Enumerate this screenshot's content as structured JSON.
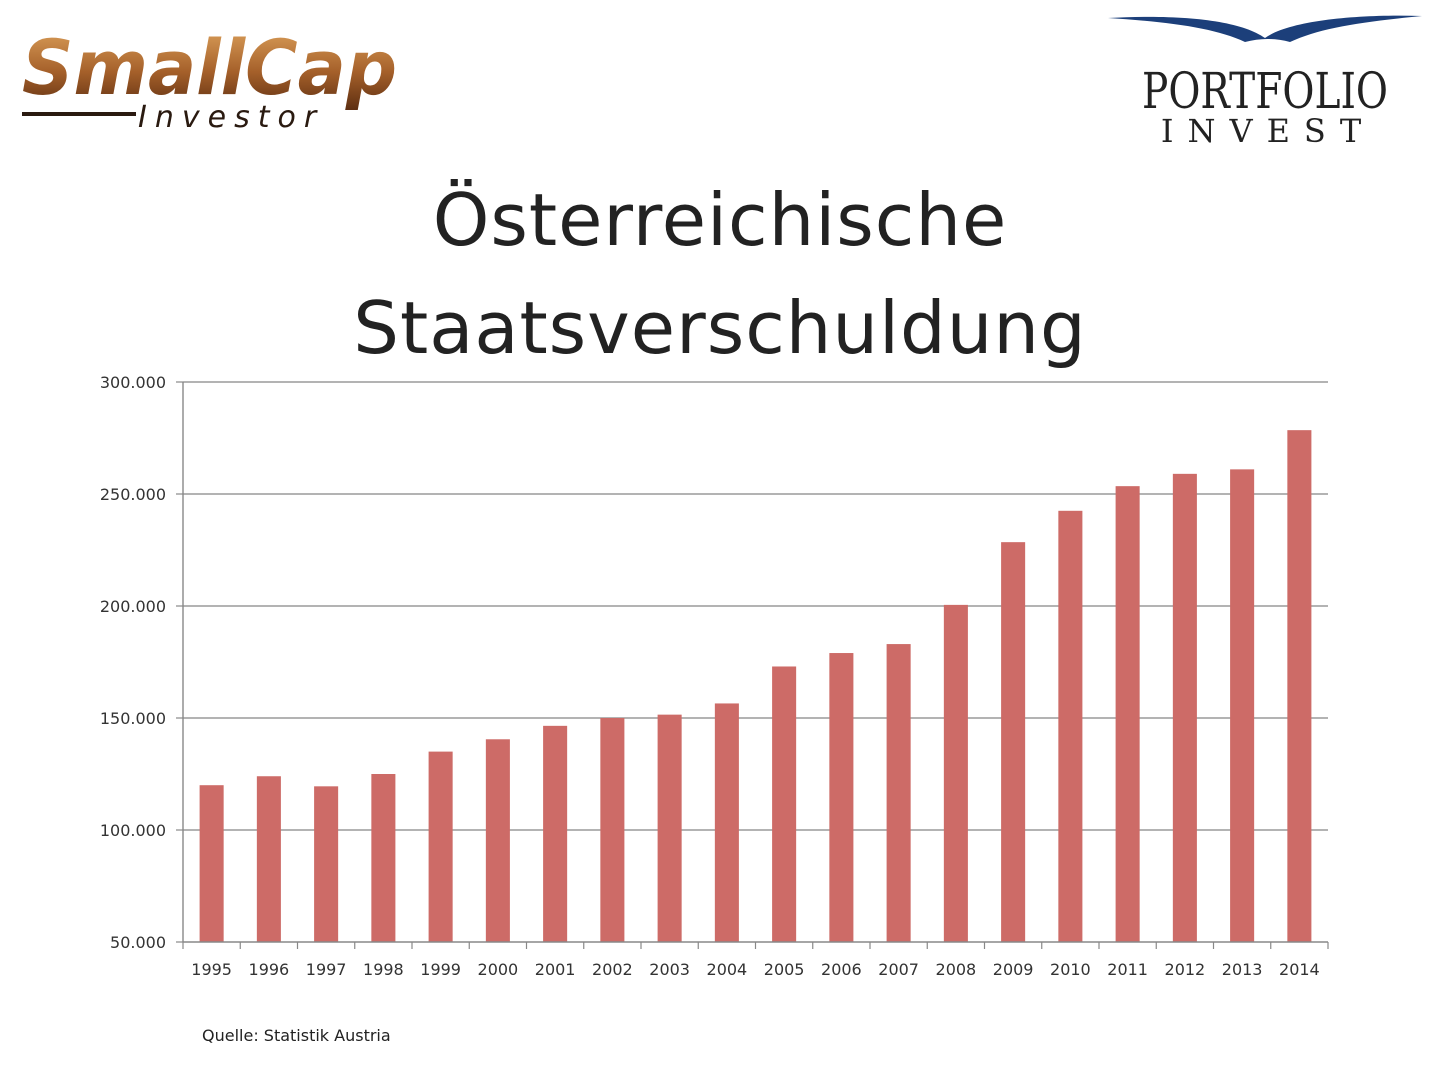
{
  "logos": {
    "smallcap": {
      "line1": "SmallCap",
      "line2": "Investor"
    },
    "portfolio": {
      "line1": "PORTFOLIO",
      "line2": "INVEST"
    }
  },
  "colors": {
    "bar": "#cd6b67",
    "grid": "#9a9a9a",
    "axis": "#888888",
    "smallcap_brown": "#8a4a1e",
    "portfolio_blue": "#1c3f7a"
  },
  "chart_data": {
    "type": "bar",
    "title": "Österreichische Staatsverschuldung",
    "title_lines": [
      "Österreichische",
      "Staatsverschuldung"
    ],
    "xlabel": "",
    "ylabel": "",
    "ylim": [
      50000,
      300000
    ],
    "yticks": [
      50000,
      100000,
      150000,
      200000,
      250000,
      300000
    ],
    "ytick_labels": [
      "50.000",
      "100.000",
      "150.000",
      "200.000",
      "250.000",
      "300.000"
    ],
    "grid": true,
    "legend": "none",
    "categories": [
      "1995",
      "1996",
      "1997",
      "1998",
      "1999",
      "2000",
      "2001",
      "2002",
      "2003",
      "2004",
      "2005",
      "2006",
      "2007",
      "2008",
      "2009",
      "2010",
      "2011",
      "2012",
      "2013",
      "2014"
    ],
    "values": [
      120000,
      124000,
      119500,
      125000,
      135000,
      140500,
      146500,
      150000,
      151500,
      156500,
      173000,
      179000,
      183000,
      200500,
      228500,
      242500,
      253500,
      259000,
      261000,
      278500
    ]
  },
  "source": "Quelle: Statistik Austria"
}
